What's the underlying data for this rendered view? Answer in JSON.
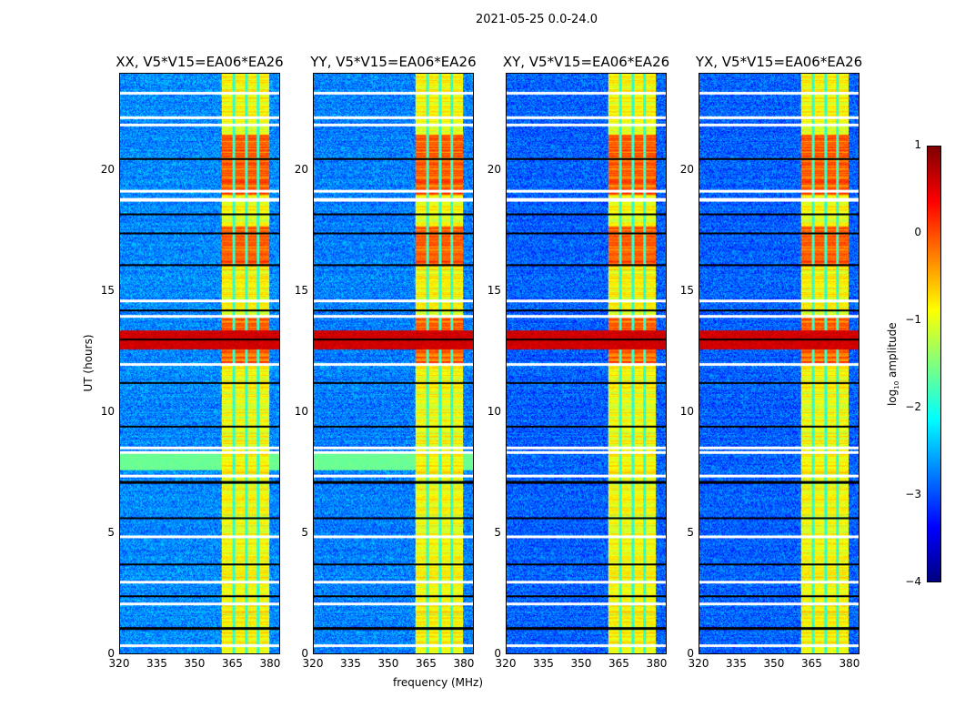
{
  "chart_data": {
    "type": "heatmap",
    "title": "2021-05-25 0.0-24.0",
    "xlabel": "frequency (MHz)",
    "ylabel": "UT (hours)",
    "colorbar_label": "log10 amplitude",
    "colorbar_label_main": "log",
    "colorbar_label_sub": "10",
    "colorbar_label_rest": " amplitude",
    "colormap": "jet",
    "clim": [
      -4,
      1
    ],
    "colorbar_ticks": [
      1,
      0,
      -1,
      -2,
      -3,
      -4
    ],
    "colorbar_tick_labels": [
      "1",
      "0",
      "−1",
      "−2",
      "−3",
      "−4"
    ],
    "xlim": [
      320,
      384
    ],
    "ylim": [
      0,
      24
    ],
    "xticks": [
      320,
      335,
      350,
      365,
      380
    ],
    "xtick_labels": [
      "320",
      "335",
      "350",
      "365",
      "380"
    ],
    "yticks": [
      0,
      5,
      10,
      15,
      20
    ],
    "ytick_labels": [
      "0",
      "5",
      "10",
      "15",
      "20"
    ],
    "panels": [
      {
        "title": "XX, V5*V15=EA06*EA26",
        "background_level": -2.7,
        "broadband_green": [
          7.6,
          8.4
        ]
      },
      {
        "title": "YY, V5*V15=EA06*EA26",
        "background_level": -2.75,
        "broadband_green": [
          7.6,
          8.4
        ]
      },
      {
        "title": "XY, V5*V15=EA06*EA26",
        "background_level": -2.9,
        "broadband_green": null
      },
      {
        "title": "YX, V5*V15=EA06*EA26",
        "background_level": -2.9,
        "broadband_green": null
      }
    ],
    "bright_band_mhz": [
      360.5,
      380
    ],
    "subband_gaps_mhz": [
      365.5,
      370.5,
      375.2
    ],
    "band_level": -0.9,
    "strong_periods_hours": [
      [
        16.0,
        17.7
      ],
      [
        19.0,
        21.5
      ],
      [
        12.0,
        14.0
      ]
    ],
    "broadband_rfi_hours": [
      12.6,
      13.4
    ],
    "flagged_hours": [
      0.34,
      2.06,
      2.96,
      4.84,
      7.35,
      8.33,
      8.52,
      11.97,
      13.96,
      14.6,
      18.8,
      19.17,
      21.9,
      22.2,
      23.2
    ],
    "dropout_hours": [
      1.05,
      2.4,
      3.7,
      5.6,
      7.1,
      9.4,
      11.2,
      13.0,
      14.2,
      16.1,
      17.4,
      18.2,
      20.5
    ]
  }
}
